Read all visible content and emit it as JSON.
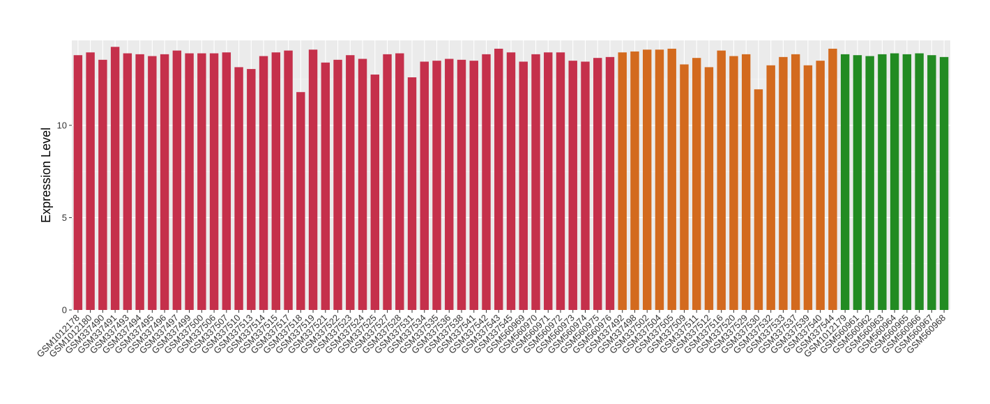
{
  "chart_data": {
    "type": "bar",
    "title": "",
    "xlabel": "",
    "ylabel": "Expression Level",
    "ylim": [
      0,
      14.6
    ],
    "yticks": [
      0,
      5,
      10
    ],
    "grid": true,
    "panel_background": "#ebebeb",
    "categories": [
      "GSM1012178",
      "GSM1012180",
      "GSM337490",
      "GSM337491",
      "GSM337493",
      "GSM337494",
      "GSM337495",
      "GSM337496",
      "GSM337497",
      "GSM337499",
      "GSM337500",
      "GSM337506",
      "GSM337507",
      "GSM337510",
      "GSM337513",
      "GSM337514",
      "GSM337515",
      "GSM337517",
      "GSM337518",
      "GSM337519",
      "GSM337521",
      "GSM337522",
      "GSM337523",
      "GSM337524",
      "GSM337525",
      "GSM337527",
      "GSM337528",
      "GSM337531",
      "GSM337534",
      "GSM337535",
      "GSM337536",
      "GSM337538",
      "GSM337541",
      "GSM337542",
      "GSM337543",
      "GSM337545",
      "GSM560969",
      "GSM560970",
      "GSM560971",
      "GSM560972",
      "GSM560973",
      "GSM560974",
      "GSM560975",
      "GSM560976",
      "GSM337492",
      "GSM337498",
      "GSM337502",
      "GSM337504",
      "GSM337505",
      "GSM337509",
      "GSM337511",
      "GSM337512",
      "GSM337516",
      "GSM337520",
      "GSM337529",
      "GSM337530",
      "GSM337532",
      "GSM337533",
      "GSM337537",
      "GSM337539",
      "GSM337540",
      "GSM337544",
      "GSM1012179",
      "GSM560961",
      "GSM560962",
      "GSM560963",
      "GSM560964",
      "GSM560965",
      "GSM560966",
      "GSM560967",
      "GSM560968"
    ],
    "values": [
      13.8,
      13.95,
      13.55,
      14.25,
      13.9,
      13.85,
      13.75,
      13.85,
      14.05,
      13.9,
      13.9,
      13.9,
      13.95,
      13.15,
      13.05,
      13.75,
      13.95,
      14.05,
      11.8,
      14.1,
      13.4,
      13.55,
      13.8,
      13.6,
      12.75,
      13.85,
      13.9,
      12.6,
      13.45,
      13.5,
      13.6,
      13.55,
      13.5,
      13.85,
      14.15,
      13.95,
      13.45,
      13.85,
      13.95,
      13.95,
      13.5,
      13.45,
      13.65,
      13.7,
      13.95,
      14.0,
      14.1,
      14.1,
      14.15,
      13.3,
      13.65,
      13.15,
      14.05,
      13.75,
      13.85,
      11.95,
      13.25,
      13.7,
      13.85,
      13.25,
      13.5,
      14.15,
      13.85,
      13.8,
      13.75,
      13.85,
      13.9,
      13.85,
      13.9,
      13.8,
      13.7
    ],
    "bar_colors": {
      "group1": "#c5304b",
      "group2": "#d36a1e",
      "group3": "#228b22"
    },
    "group_sizes": [
      44,
      18,
      9
    ]
  }
}
